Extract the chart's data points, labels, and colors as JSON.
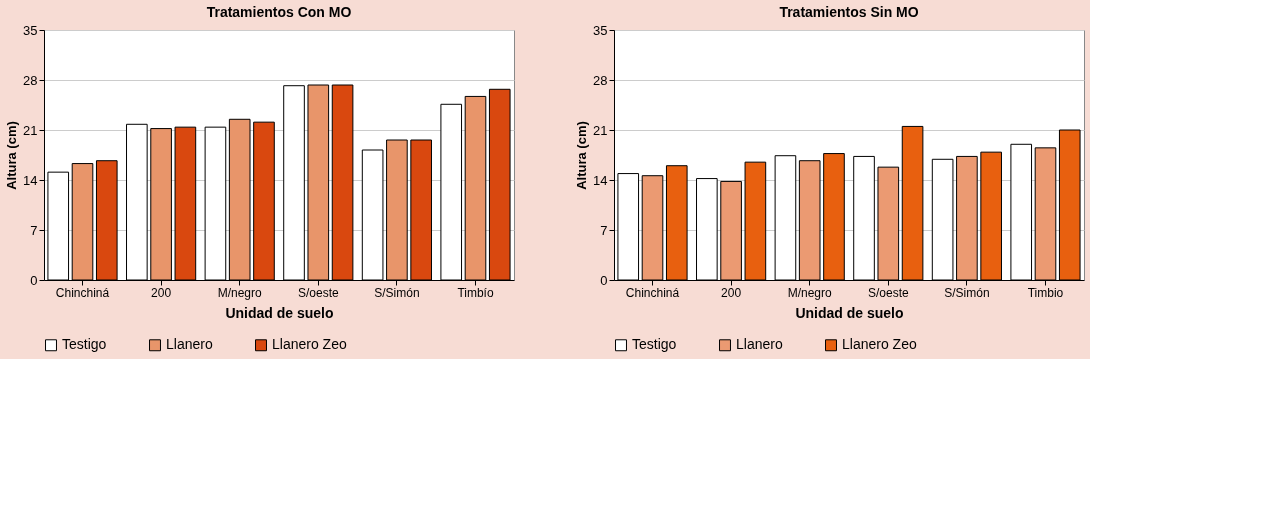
{
  "chart_data": [
    {
      "type": "bar",
      "title": "Tratamientos Con MO",
      "xlabel": "Unidad de suelo",
      "ylabel": "Altura (cm)",
      "categories": [
        "Chinchiná",
        "200",
        "M/negro",
        "S/oeste",
        "S/Simón",
        "Timbío"
      ],
      "ylim": [
        0,
        35
      ],
      "yticks": [
        0,
        7,
        14,
        21,
        28,
        35
      ],
      "grid": "y",
      "legend": "bottom",
      "series": [
        {
          "name": "Testigo",
          "color": "#ffffff",
          "values": [
            15.1,
            21.8,
            21.4,
            27.2,
            18.2,
            24.6
          ]
        },
        {
          "name": "Llanero",
          "color": "#e8956a",
          "values": [
            16.3,
            21.2,
            22.5,
            27.3,
            19.6,
            25.7
          ]
        },
        {
          "name": "Llanero Zeo",
          "color": "#d9480f",
          "values": [
            16.7,
            21.4,
            22.1,
            27.3,
            19.6,
            26.7
          ]
        }
      ]
    },
    {
      "type": "bar",
      "title": "Tratamientos Sin MO",
      "xlabel": "Unidad de suelo",
      "ylabel": "Altura (cm)",
      "categories": [
        "Chinchiná",
        "200",
        "M/negro",
        "S/oeste",
        "S/Simón",
        "Timbio"
      ],
      "ylim": [
        0,
        35
      ],
      "yticks": [
        0,
        7,
        14,
        21,
        28,
        35
      ],
      "grid": "y",
      "legend": "bottom",
      "series": [
        {
          "name": "Testigo",
          "color": "#ffffff",
          "values": [
            14.9,
            14.2,
            17.4,
            17.3,
            16.9,
            19.0
          ]
        },
        {
          "name": "Llanero",
          "color": "#eb9a72",
          "values": [
            14.6,
            13.8,
            16.7,
            15.8,
            17.3,
            18.5
          ]
        },
        {
          "name": "Llanero Zeo",
          "color": "#e8600f",
          "values": [
            16.0,
            16.5,
            17.7,
            21.5,
            17.9,
            21.0
          ]
        }
      ]
    }
  ]
}
